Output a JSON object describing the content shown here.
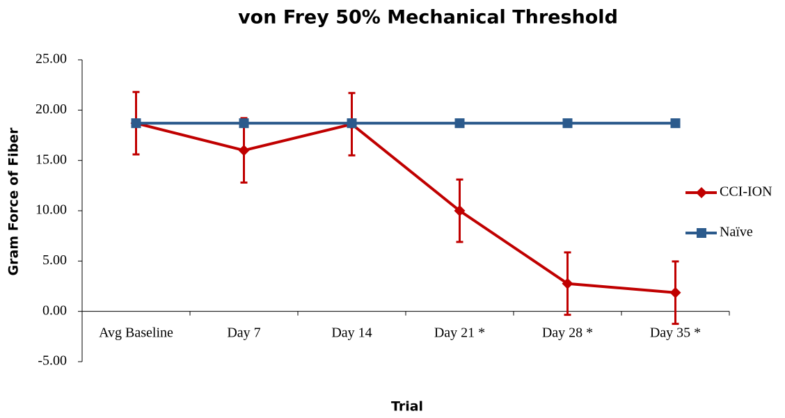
{
  "chart_data": {
    "type": "line",
    "title": "von Frey 50% Mechanical Threshold",
    "xlabel": "Trial",
    "ylabel": "Gram Force of Fiber",
    "categories": [
      "Avg Baseline",
      "Day 7",
      "Day 14",
      "Day 21 *",
      "Day 28 *",
      "Day 35 *"
    ],
    "series": [
      {
        "name": "CCI-ION",
        "color": "#c00000",
        "marker": "diamond",
        "values": [
          18.7,
          16.0,
          18.6,
          10.0,
          2.76,
          1.86
        ],
        "errors": [
          3.1,
          3.2,
          3.1,
          3.1,
          3.1,
          3.1
        ]
      },
      {
        "name": "Naïve",
        "color": "#2b5a8c",
        "marker": "square",
        "values": [
          18.7,
          18.7,
          18.7,
          18.7,
          18.7,
          18.7
        ]
      }
    ],
    "ylim": [
      -5,
      25
    ],
    "yticks": [
      {
        "value": -5,
        "label": "-5.00"
      },
      {
        "value": 0,
        "label": "0.00"
      },
      {
        "value": 5,
        "label": "5.00"
      },
      {
        "value": 10,
        "label": "10.00"
      },
      {
        "value": 15,
        "label": "15.00"
      },
      {
        "value": 20,
        "label": "20.00"
      },
      {
        "value": 25,
        "label": "25.00"
      }
    ],
    "grid": false,
    "legend": "right"
  }
}
